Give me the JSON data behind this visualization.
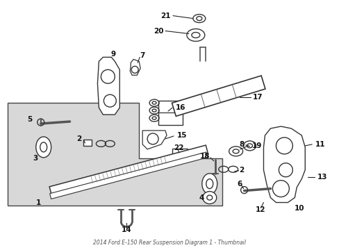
{
  "title": "2014 Ford E-150 Rear Suspension Diagram 1 - Thumbnail",
  "bg_color": "#ffffff",
  "fig_w": 4.89,
  "fig_h": 3.6
}
